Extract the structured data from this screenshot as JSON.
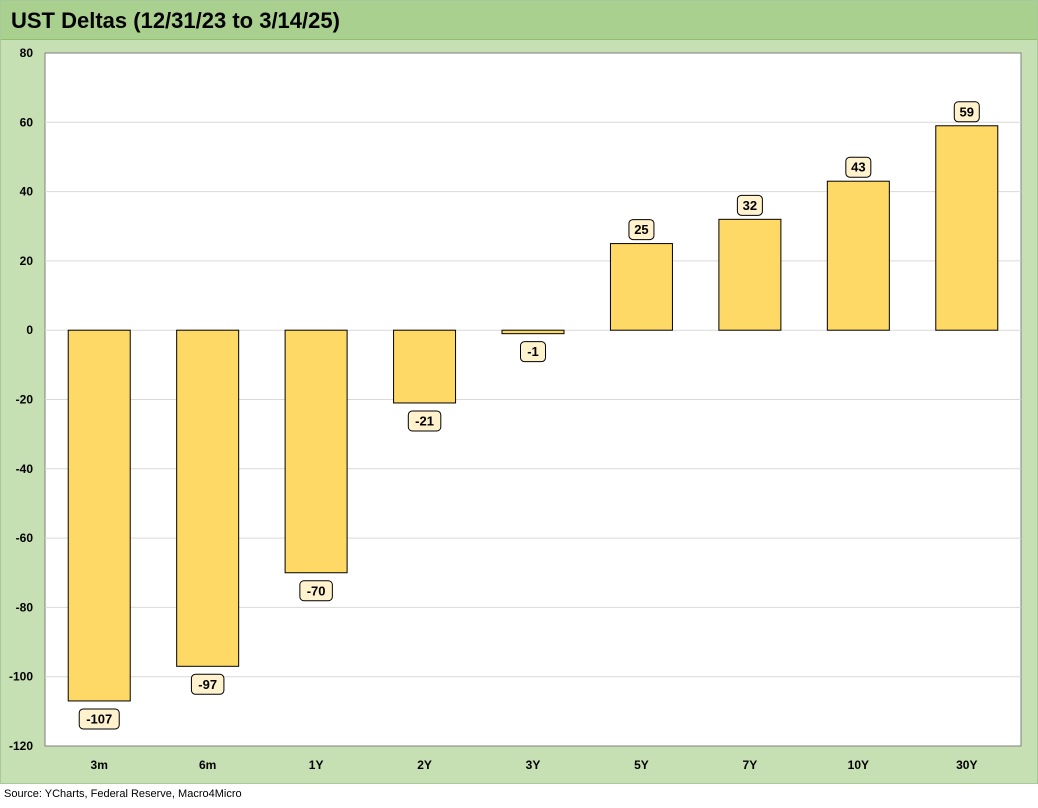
{
  "title": "UST Deltas (12/31/23 to 3/14/25)",
  "source": "Source: YCharts, Federal Reserve, Macro4Micro",
  "colors": {
    "bar_fill": "#ffd966",
    "bar_stroke": "#000000",
    "label_fill": "#fff2cc",
    "plot_bg": "#ffffff",
    "frame_bg": "#c6e0b4",
    "title_bar_bg": "#a9d08e",
    "gridline": "#d9d9d9"
  },
  "chart_data": {
    "type": "bar",
    "categories": [
      "3m",
      "6m",
      "1Y",
      "2Y",
      "3Y",
      "5Y",
      "7Y",
      "10Y",
      "30Y"
    ],
    "values": [
      -107,
      -97,
      -70,
      -21,
      -1,
      25,
      32,
      43,
      59
    ],
    "ylim": [
      -120,
      80
    ],
    "yticks": [
      80,
      60,
      40,
      20,
      0,
      -20,
      -40,
      -60,
      -80,
      -100,
      -120
    ],
    "grid": true,
    "xlabel": "",
    "ylabel": ""
  }
}
